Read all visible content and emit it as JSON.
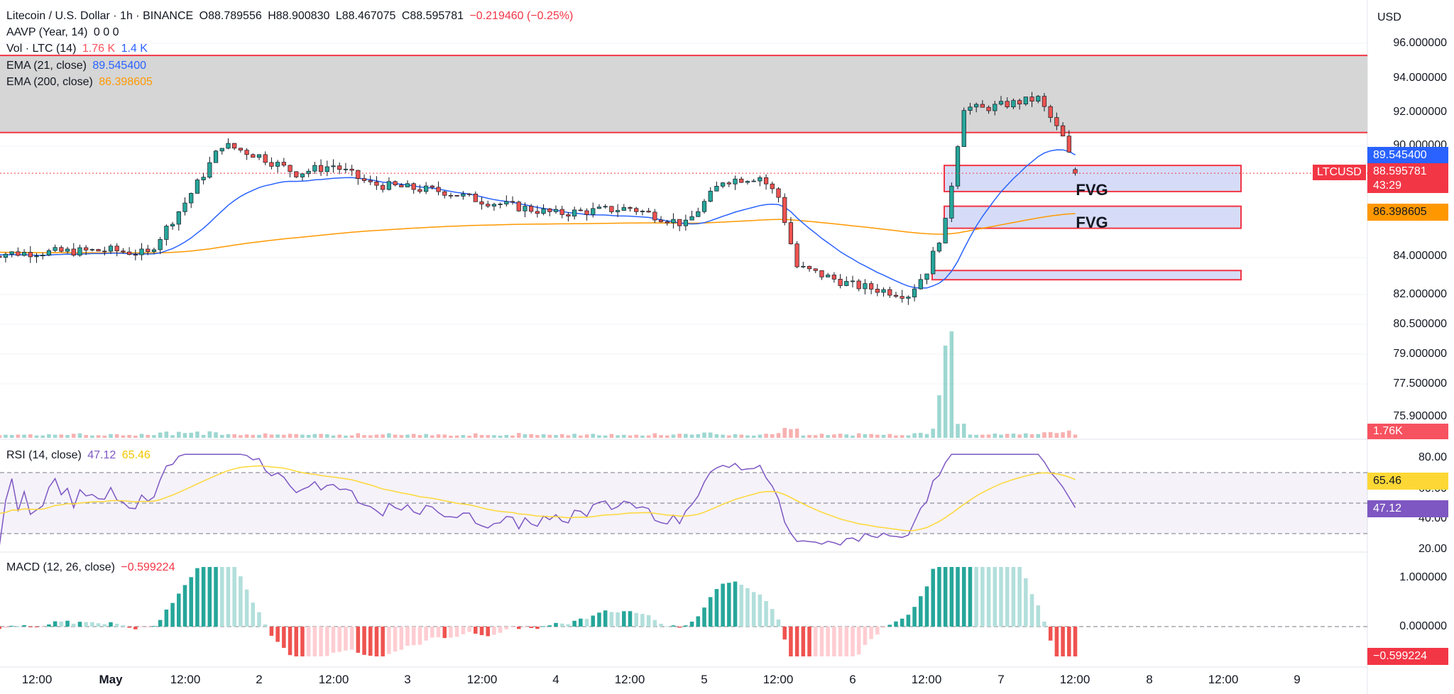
{
  "header": {
    "symbol": "Litecoin / U.S. Dollar · 1h · BINANCE",
    "open": "O88.789556",
    "high": "H88.900830",
    "low": "L88.467075",
    "close": "C88.595781",
    "change": "−0.219460 (−0.25%)"
  },
  "indicators": {
    "aavp": {
      "label": "AAVP (Year, 14)",
      "values": "0  0  0"
    },
    "vol": {
      "label": "Vol · LTC (14)",
      "v1": "1.76 K",
      "v2": "1.4 K"
    },
    "ema21": {
      "label": "EMA (21, close)",
      "value": "89.545400"
    },
    "ema200": {
      "label": "EMA (200, close)",
      "value": "86.398605"
    },
    "rsi": {
      "label": "RSI (14, close)",
      "value": "47.12",
      "ma": "65.46"
    },
    "macd": {
      "label": "MACD (12, 26, close)",
      "value": "−0.599224"
    }
  },
  "price_axis": {
    "currency": "USD",
    "ticks": [
      "96.000000",
      "94.000000",
      "92.000000",
      "90.000000",
      "84.000000",
      "82.000000",
      "80.500000",
      "79.000000",
      "77.500000",
      "75.900000"
    ],
    "badges": {
      "ema21": "89.545400",
      "last": "88.595781",
      "countdown": "43:29",
      "ema200": "86.398605",
      "volume": "1.76K",
      "symbol_tag": "LTCUSD"
    },
    "rsi_ticks": [
      "80.00",
      "60.00",
      "40.00",
      "20.00"
    ],
    "rsi_badges": {
      "ma": "65.46",
      "rsi": "47.12"
    },
    "macd_ticks": [
      "1.000000",
      "0.000000"
    ],
    "macd_badge": "−0.599224"
  },
  "time_axis": [
    "12:00",
    "May",
    "12:00",
    "2",
    "12:00",
    "3",
    "12:00",
    "4",
    "12:00",
    "5",
    "12:00",
    "6",
    "12:00",
    "7",
    "12:00",
    "8",
    "12:00",
    "9"
  ],
  "annotations": {
    "fvg_1": "FVG",
    "fvg_2": "FVG"
  },
  "colors": {
    "up": "#26a69a",
    "down": "#ef5350",
    "ema21": "#2962ff",
    "ema200": "#ff9800",
    "rsi": "#7e57c2",
    "rsi_ma": "#fdd835",
    "zone_border": "#f23645",
    "fvg_fill": "#d6dcf7",
    "supply_fill": "#cfcfcf"
  },
  "chart_data": {
    "type": "candlestick",
    "symbol": "LTCUSD",
    "interval": "1h",
    "ylim": [
      75.9,
      96.0
    ],
    "supply_zone": [
      90.8,
      95.3
    ],
    "fvg_zones": [
      [
        87.6,
        89.0
      ],
      [
        85.6,
        86.8
      ],
      [
        82.8,
        83.3
      ]
    ],
    "close_path": [
      {
        "x": "May 1 00:00",
        "y": 84.4
      },
      {
        "x": "May 1 06:00",
        "y": 84.2
      },
      {
        "x": "May 1 12:00",
        "y": 87.0
      },
      {
        "x": "May 1 18:00",
        "y": 90.1
      },
      {
        "x": "May 2 00:00",
        "y": 89.5
      },
      {
        "x": "May 2 06:00",
        "y": 88.6
      },
      {
        "x": "May 2 12:00",
        "y": 89.0
      },
      {
        "x": "May 2 18:00",
        "y": 88.0
      },
      {
        "x": "May 3 06:00",
        "y": 87.6
      },
      {
        "x": "May 3 12:00",
        "y": 87.1
      },
      {
        "x": "May 4 00:00",
        "y": 86.4
      },
      {
        "x": "May 4 12:00",
        "y": 86.7
      },
      {
        "x": "May 4 21:00",
        "y": 85.8
      },
      {
        "x": "May 5 03:00",
        "y": 88.2
      },
      {
        "x": "May 5 09:00",
        "y": 88.4
      },
      {
        "x": "May 5 12:00",
        "y": 87.3
      },
      {
        "x": "May 5 15:00",
        "y": 83.5
      },
      {
        "x": "May 6 00:00",
        "y": 82.5
      },
      {
        "x": "May 6 09:00",
        "y": 82.0
      },
      {
        "x": "May 6 12:00",
        "y": 83.3
      },
      {
        "x": "May 6 15:00",
        "y": 85.9
      },
      {
        "x": "May 6 18:00",
        "y": 92.3
      },
      {
        "x": "May 6 21:00",
        "y": 92.2
      },
      {
        "x": "May 7 06:00",
        "y": 92.8
      },
      {
        "x": "May 7 10:00",
        "y": 90.5
      },
      {
        "x": "May 7 12:00",
        "y": 88.6
      }
    ],
    "last": {
      "open": 88.789556,
      "high": 88.90083,
      "low": 88.467075,
      "close": 88.595781
    },
    "ema21_last": 89.5454,
    "ema200_last": 86.398605,
    "rsi": {
      "last": 47.12,
      "ma": 65.46,
      "ylim": [
        20,
        80
      ],
      "bands": [
        70,
        50,
        30
      ]
    },
    "macd": {
      "last": -0.599224,
      "ylim": [
        -0.6,
        1.2
      ]
    }
  }
}
